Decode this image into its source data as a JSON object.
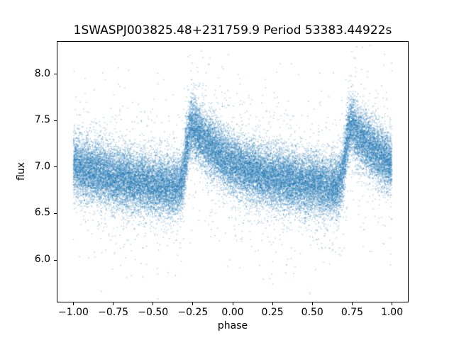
{
  "chart_data": {
    "type": "scatter",
    "title": "1SWASPJ003825.48+231759.9 Period 53383.44922s",
    "xlabel": "phase",
    "ylabel": "flux",
    "xlim": [
      -1.1,
      1.1
    ],
    "ylim": [
      5.55,
      8.35
    ],
    "grid": false,
    "legend": "none",
    "xticks": {
      "values": [
        -1.0,
        -0.75,
        -0.5,
        -0.25,
        0.0,
        0.25,
        0.5,
        0.75,
        1.0
      ],
      "labels": [
        "−1.00",
        "−0.75",
        "−0.50",
        "−0.25",
        "0.00",
        "0.25",
        "0.50",
        "0.75",
        "1.00"
      ]
    },
    "yticks": {
      "values": [
        6.0,
        6.5,
        7.0,
        7.5,
        8.0
      ],
      "labels": [
        "6.0",
        "6.5",
        "7.0",
        "7.5",
        "8.0"
      ]
    },
    "marker": {
      "color": "#1f77b4",
      "size": 1.4,
      "alpha": 0.38
    },
    "scatter_model": {
      "description": "Phase-folded sawtooth light curve: sharp brightening near phase -0.26 and 0.74 followed by slow decay; dense Gaussian noise band with sparse outliers.",
      "n_points": 36000,
      "seed": 42,
      "phase_range": [
        -1.0,
        1.0
      ],
      "noise_sigma": 0.16,
      "outlier_fraction": 0.06,
      "outlier_sigma": 0.45,
      "mean_curve": {
        "phase_frac": [
          0.0,
          0.06,
          0.13,
          0.2,
          0.3,
          0.4,
          0.5,
          0.58,
          0.64,
          0.67,
          0.69,
          0.71,
          0.73,
          0.74,
          0.76,
          0.8,
          0.85,
          0.9,
          0.95,
          1.0
        ],
        "flux": [
          7.04,
          6.99,
          6.95,
          6.91,
          6.87,
          6.84,
          6.82,
          6.8,
          6.79,
          6.8,
          6.92,
          7.18,
          7.38,
          7.45,
          7.42,
          7.33,
          7.24,
          7.16,
          7.09,
          7.04
        ]
      }
    }
  }
}
